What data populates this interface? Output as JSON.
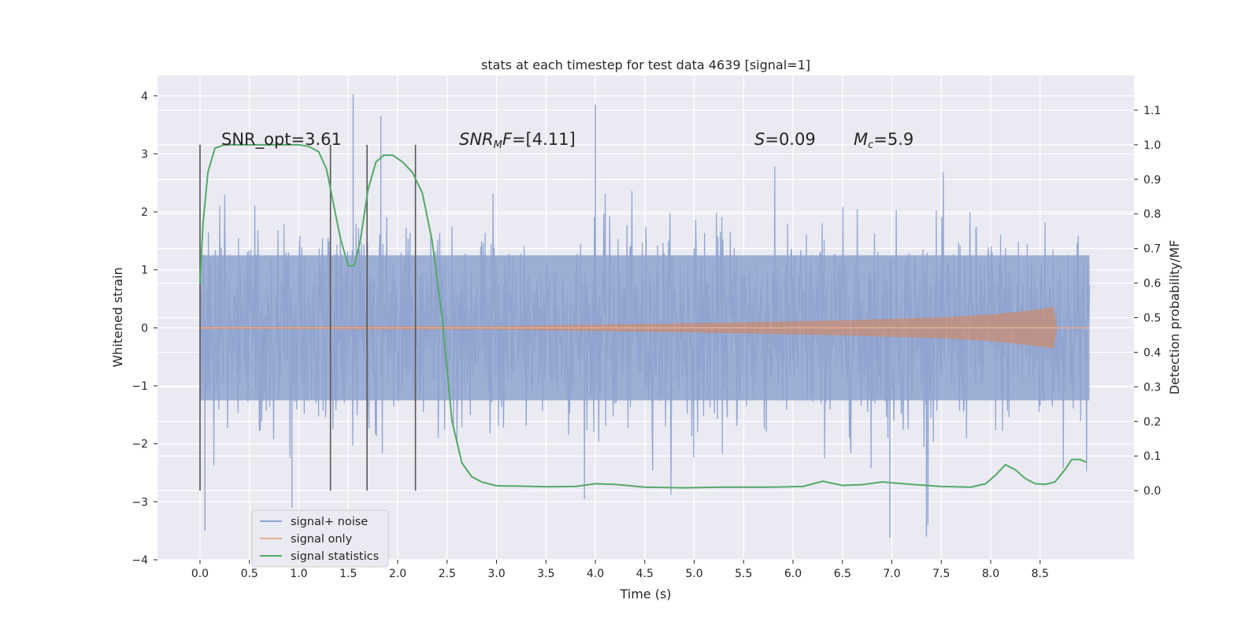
{
  "chart_data": {
    "type": "line",
    "title": "stats at each timestep for test data 4639 [signal=1]",
    "xlabel": "Time (s)",
    "ylabel": "Whitened strain",
    "y2label": "Detection probability/MF",
    "xlim": [
      -0.43,
      9.45
    ],
    "ylim": [
      -4.0,
      4.35
    ],
    "y2lim": [
      -0.2,
      1.2
    ],
    "xticks": [
      "0.0",
      "0.5",
      "1.0",
      "1.5",
      "2.0",
      "2.5",
      "3.0",
      "3.5",
      "4.0",
      "4.5",
      "5.0",
      "5.5",
      "6.0",
      "6.5",
      "7.0",
      "7.5",
      "8.0",
      "8.5"
    ],
    "yticks": [
      "4",
      "3",
      "2",
      "1",
      "0",
      "−1",
      "−2",
      "−3",
      "−4"
    ],
    "y2ticks": [
      "1.1",
      "1.0",
      "0.9",
      "0.8",
      "0.7",
      "0.6",
      "0.5",
      "0.4",
      "0.3",
      "0.2",
      "0.1",
      "0.0"
    ],
    "grid": true,
    "legend_position": "lower-left",
    "annotations": {
      "snr_opt": "SNR_opt=3.61",
      "snr_mf": "SNRMF=[4.11]",
      "s": "S=0.09",
      "mc": "Mc=5.9"
    },
    "vertical_markers_x": [
      0.0,
      1.32,
      1.69,
      2.18
    ],
    "series": [
      {
        "name": "signal+ noise",
        "color": "#8fa3cf",
        "axis": "left",
        "x_range": [
          0.0,
          9.0
        ],
        "envelope": "noise band approx ±1.5, peaks to ±3.5 (max 4.03 at 1.55, min -3.5 at 0.05)"
      },
      {
        "name": "signal only",
        "color": "#dd8452",
        "axis": "left",
        "x_range": [
          0.0,
          9.0
        ],
        "amplitude": [
          [
            0.0,
            0.02
          ],
          [
            3.0,
            0.03
          ],
          [
            5.0,
            0.08
          ],
          [
            6.5,
            0.13
          ],
          [
            7.5,
            0.18
          ],
          [
            8.0,
            0.23
          ],
          [
            8.4,
            0.3
          ],
          [
            8.65,
            0.36
          ],
          [
            8.67,
            0.0
          ],
          [
            9.0,
            0.0
          ]
        ]
      },
      {
        "name": "signal statistics",
        "color": "#55a868",
        "axis": "right",
        "x": [
          0.0,
          0.03,
          0.08,
          0.15,
          0.25,
          0.4,
          0.6,
          0.8,
          1.0,
          1.1,
          1.2,
          1.28,
          1.35,
          1.42,
          1.5,
          1.56,
          1.62,
          1.7,
          1.78,
          1.86,
          1.95,
          2.05,
          2.15,
          2.25,
          2.35,
          2.45,
          2.55,
          2.65,
          2.75,
          2.85,
          3.0,
          3.2,
          3.5,
          3.8,
          4.0,
          4.2,
          4.5,
          4.9,
          5.3,
          5.8,
          6.1,
          6.3,
          6.5,
          6.7,
          6.9,
          7.2,
          7.5,
          7.8,
          7.95,
          8.05,
          8.15,
          8.25,
          8.35,
          8.45,
          8.55,
          8.65,
          8.75,
          8.82,
          8.9,
          8.97
        ],
        "values": [
          0.6,
          0.77,
          0.92,
          0.99,
          1.0,
          1.0,
          1.0,
          1.0,
          1.0,
          0.995,
          0.98,
          0.93,
          0.83,
          0.73,
          0.65,
          0.65,
          0.72,
          0.87,
          0.95,
          0.97,
          0.97,
          0.95,
          0.92,
          0.86,
          0.72,
          0.5,
          0.2,
          0.08,
          0.04,
          0.025,
          0.014,
          0.013,
          0.011,
          0.012,
          0.02,
          0.018,
          0.01,
          0.008,
          0.01,
          0.01,
          0.012,
          0.027,
          0.015,
          0.017,
          0.025,
          0.018,
          0.012,
          0.01,
          0.02,
          0.045,
          0.075,
          0.06,
          0.035,
          0.02,
          0.018,
          0.025,
          0.06,
          0.09,
          0.09,
          0.082
        ]
      }
    ]
  }
}
